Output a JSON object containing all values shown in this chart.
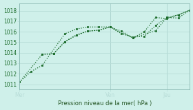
{
  "xlabel": "Pression niveau de la mer( hPa )",
  "bg_color": "#cff0ea",
  "grid_color": "#b8ddd8",
  "line_color": "#1a6b2a",
  "tick_label_color": "#1a6b2a",
  "xlabel_color": "#2a5a2a",
  "ylim": [
    1010.5,
    1018.7
  ],
  "yticks": [
    1011,
    1012,
    1013,
    1014,
    1015,
    1016,
    1017,
    1018
  ],
  "day_labels": [
    "Mer",
    "Ven",
    "Jeu"
  ],
  "day_positions": [
    0.0,
    8.0,
    13.0
  ],
  "xlim": [
    0,
    15
  ],
  "num_xgrid": 15,
  "line1_x": [
    0,
    1,
    2,
    4,
    5,
    6,
    7,
    8,
    10,
    11,
    12,
    13,
    14,
    15
  ],
  "line1_y": [
    1011.2,
    1012.2,
    1012.8,
    1015.8,
    1016.25,
    1016.45,
    1016.45,
    1016.45,
    1015.4,
    1016.0,
    1017.35,
    1017.25,
    1017.6,
    1018.05
  ],
  "line2_x": [
    0,
    2,
    3,
    4,
    5,
    6,
    7,
    8,
    9,
    10,
    12,
    13,
    14,
    15
  ],
  "line2_y": [
    1011.2,
    1013.85,
    1013.9,
    1015.05,
    1015.65,
    1016.05,
    1016.15,
    1016.45,
    1016.05,
    1015.4,
    1016.1,
    1017.35,
    1017.3,
    1018.05
  ],
  "line3_x": [
    2,
    3,
    4,
    5,
    6,
    7,
    8,
    9,
    10,
    11,
    12,
    13,
    14,
    15
  ],
  "line3_y": [
    1013.85,
    1013.9,
    1015.05,
    1015.7,
    1016.05,
    1016.15,
    1016.45,
    1015.8,
    1015.5,
    1015.55,
    1016.6,
    1017.35,
    1017.6,
    1018.05
  ]
}
